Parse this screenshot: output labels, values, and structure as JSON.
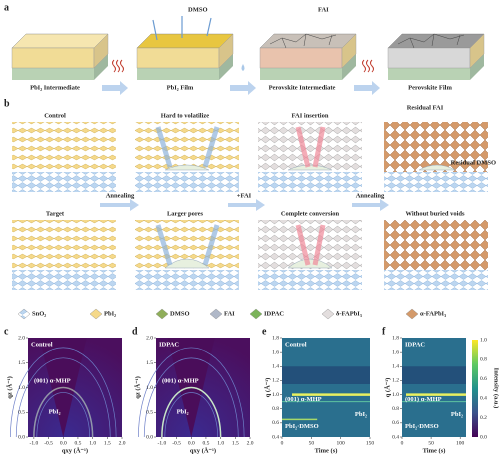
{
  "panel_a": {
    "label": "a",
    "steps": [
      "PbI₂ Intermediate",
      "PbI₂ Film",
      "Perovskite Intermediate",
      "Perovskite Film"
    ],
    "annotations": [
      "DMSO",
      "FAI"
    ]
  },
  "panel_b": {
    "label": "b",
    "rows": [
      "Control",
      "Target"
    ],
    "arrows": [
      "Annealing",
      "+FAI",
      "Annealing"
    ],
    "control_notes": [
      "Hard to volatilize",
      "FAI insertion",
      "Residual FAI",
      "Residual DMSO"
    ],
    "target_notes": [
      "Larger pores",
      "Complete conversion",
      "Without buried voids"
    ],
    "legend": [
      "SnO₂",
      "PbI₂",
      "DMSO",
      "FAI",
      "IDPAC",
      "δ-FAPbI₃",
      "α-FAPbI₃"
    ]
  },
  "giwaxs": {
    "ylabel": "qz (Å⁻¹)",
    "xlabel": "qxy (Å⁻¹)",
    "yticks": [
      "0.0",
      "0.5",
      "1.0",
      "1.5",
      "2.0"
    ],
    "xticks": [
      "-1.0",
      "-0.5",
      "0.0",
      "0.5",
      "1.0",
      "1.5",
      "2.0"
    ],
    "panels": [
      {
        "label": "c",
        "title": "Control",
        "peak": "(001) α-MHP",
        "phase": "PbI₂"
      },
      {
        "label": "d",
        "title": "IDPAC",
        "peak": "(001) α-MHP",
        "phase": "PbI₂"
      }
    ]
  },
  "in_situ": {
    "ylabel": "q (Å⁻¹)",
    "xlabel": "Time (s)",
    "yticks": [
      "0.4",
      "0.6",
      "0.8",
      "1.0",
      "1.2",
      "1.4",
      "1.6",
      "1.8"
    ],
    "panels": [
      {
        "label": "e",
        "title": "Control",
        "peak": "(001) α-MHP",
        "intermediate": "PbI₂·DMSO",
        "phase": "PbI₂",
        "xticks": [
          "0",
          "50",
          "100",
          "150"
        ]
      },
      {
        "label": "f",
        "title": "IDPAC",
        "peak": "(001) α-MHP",
        "intermediate": "PbI₂·DMSO",
        "phase": "PbI₂",
        "xticks": [
          "0",
          "50",
          "100"
        ]
      }
    ],
    "colorbar": {
      "label": "Intensity (a.u.)",
      "ticks": [
        "0.0",
        "0.2",
        "0.4",
        "0.6",
        "0.8",
        "1.0"
      ]
    }
  }
}
